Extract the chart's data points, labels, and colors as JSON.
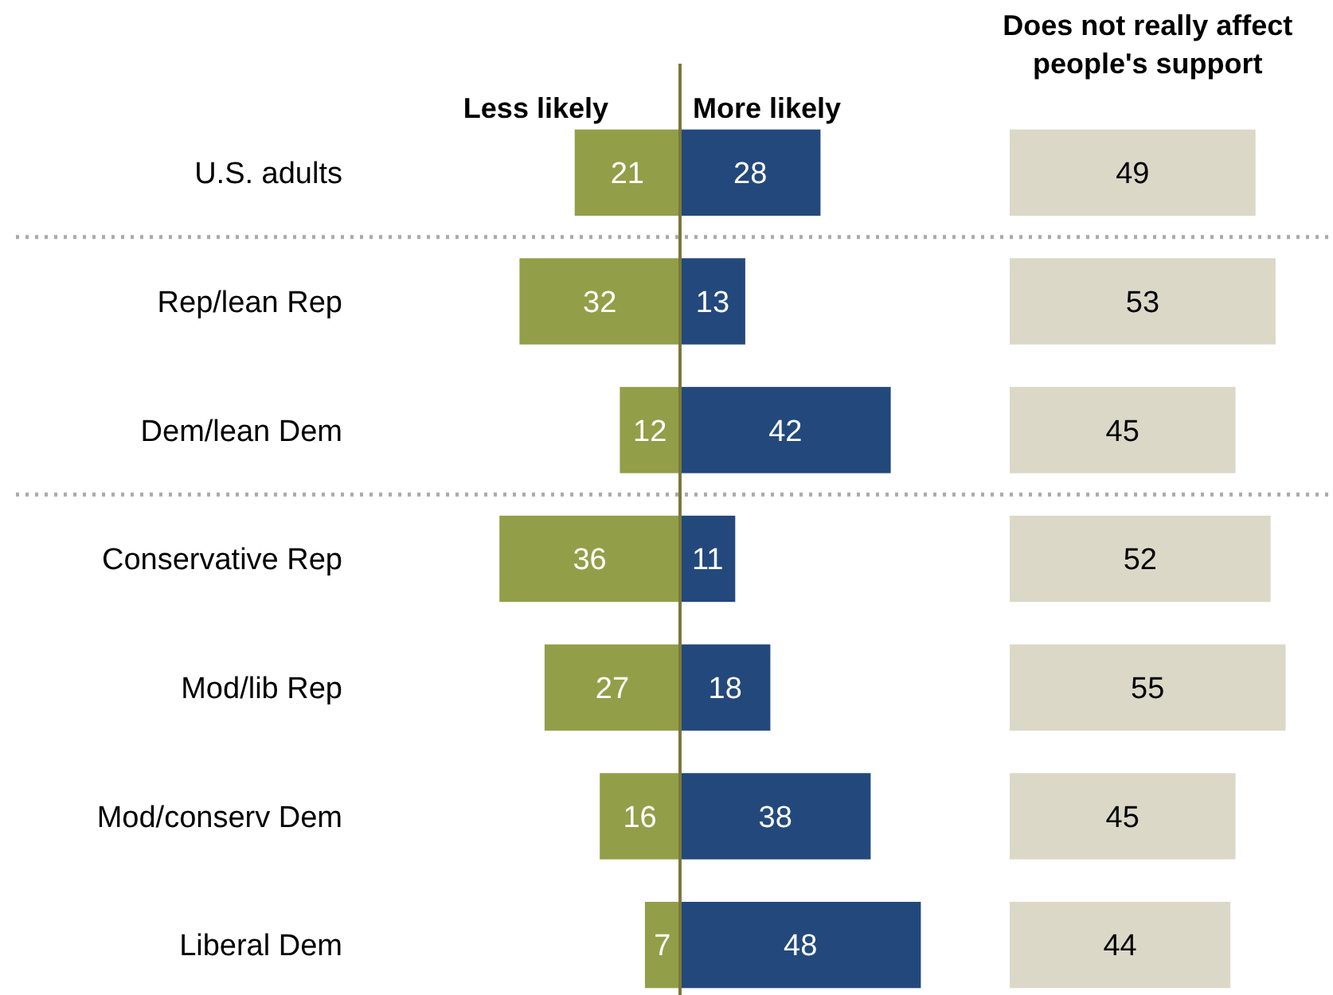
{
  "chart_data": [
    {
      "type": "bar",
      "orientation": "horizontal",
      "title": "Less likely",
      "categories": [
        "U.S. adults",
        "Rep/lean Rep",
        "Dem/lean Dem",
        "Conservative Rep",
        "Mod/lib Rep",
        "Mod/conserv Dem",
        "Liberal Dem"
      ],
      "values": [
        21,
        32,
        12,
        36,
        27,
        16,
        7
      ],
      "color": "#939e48",
      "data_labels": true,
      "xlim": [
        36,
        0
      ],
      "tick_labels": "y"
    },
    {
      "type": "bar",
      "orientation": "horizontal",
      "title": "More likely",
      "categories": [
        null,
        null,
        null,
        null,
        null,
        null,
        null
      ],
      "values": [
        28,
        13,
        42,
        11,
        18,
        38,
        48
      ],
      "color": "#23487c",
      "data_labels": true,
      "xlim": [
        0,
        48
      ],
      "tick_labels": false
    },
    {
      "type": "bar",
      "orientation": "horizontal",
      "title": "Does not really affect people's support",
      "categories": [
        null,
        null,
        null,
        null,
        null,
        null,
        null
      ],
      "values": [
        49,
        53,
        45,
        52,
        55,
        45,
        44
      ],
      "color": "#dbd8c8",
      "data_labels": true,
      "xlim": [
        0,
        55
      ],
      "tick_labels": false
    }
  ]
}
